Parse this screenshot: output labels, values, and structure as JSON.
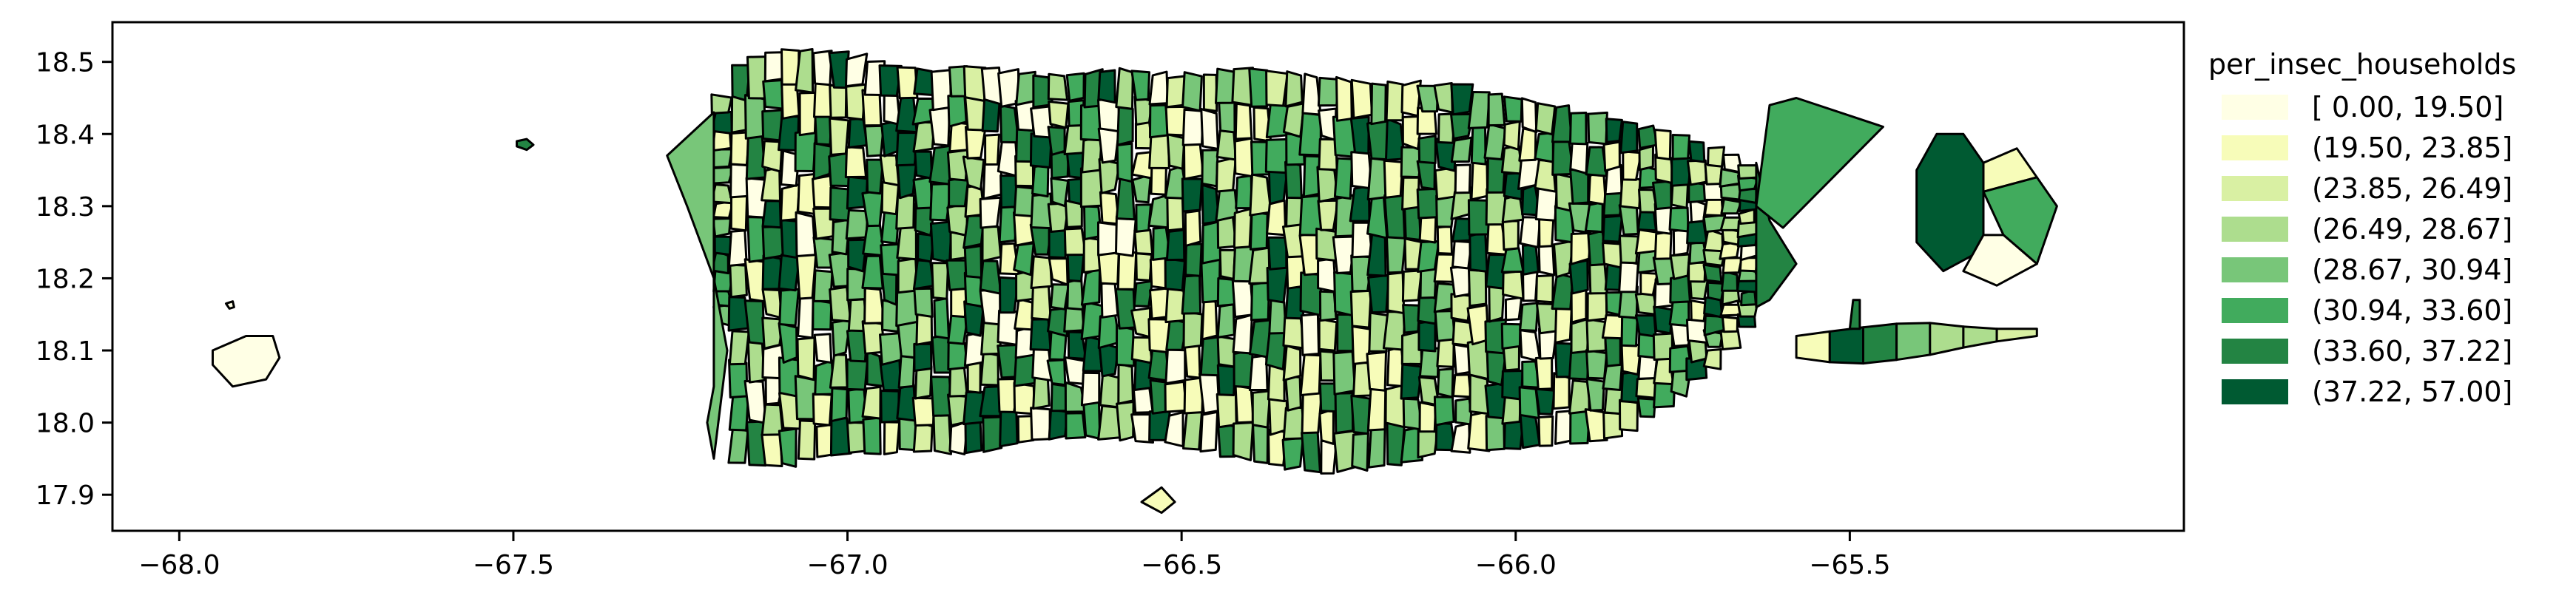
{
  "map": {
    "x_axis": {
      "ticks": [
        -68.0,
        -67.5,
        -67.0,
        -66.5,
        -66.0,
        -65.5
      ],
      "tick_labels": [
        "−68.0",
        "−67.5",
        "−67.0",
        "−66.5",
        "−66.0",
        "−65.5"
      ],
      "range": [
        -68.1,
        -65.0
      ]
    },
    "y_axis": {
      "ticks": [
        17.9,
        18.0,
        18.1,
        18.2,
        18.3,
        18.4,
        18.5
      ],
      "tick_labels": [
        "17.9",
        "18.0",
        "18.1",
        "18.2",
        "18.3",
        "18.4",
        "18.5"
      ],
      "range": [
        17.85,
        18.555
      ]
    },
    "grid": false
  },
  "legend": {
    "title": "per_insec_households",
    "placement": "outside-right",
    "bins": [
      {
        "label": "[ 0.00, 19.50]",
        "color": "#ffffe5"
      },
      {
        "label": "(19.50, 23.85]",
        "color": "#f7fcb9"
      },
      {
        "label": "(23.85, 26.49]",
        "color": "#d9f0a3"
      },
      {
        "label": "(26.49, 28.67]",
        "color": "#addd8e"
      },
      {
        "label": "(28.67, 30.94]",
        "color": "#78c679"
      },
      {
        "label": "(30.94, 33.60]",
        "color": "#41ab5d"
      },
      {
        "label": "(33.60, 37.22]",
        "color": "#238443"
      },
      {
        "label": "(37.22, 57.00]",
        "color": "#005a32"
      }
    ]
  }
}
